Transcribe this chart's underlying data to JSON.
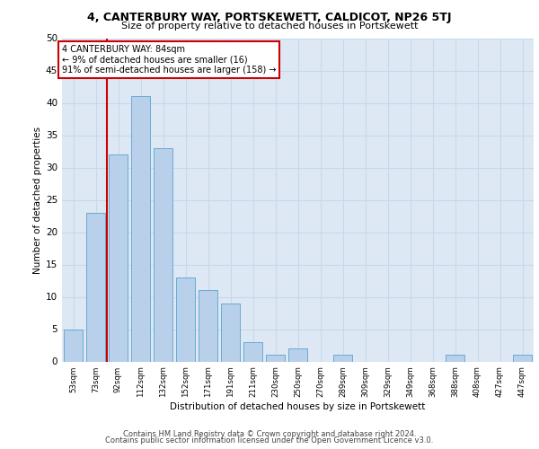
{
  "title1": "4, CANTERBURY WAY, PORTSKEWETT, CALDICOT, NP26 5TJ",
  "title2": "Size of property relative to detached houses in Portskewett",
  "xlabel": "Distribution of detached houses by size in Portskewett",
  "ylabel": "Number of detached properties",
  "bar_labels": [
    "53sqm",
    "73sqm",
    "92sqm",
    "112sqm",
    "132sqm",
    "152sqm",
    "171sqm",
    "191sqm",
    "211sqm",
    "230sqm",
    "250sqm",
    "270sqm",
    "289sqm",
    "309sqm",
    "329sqm",
    "349sqm",
    "368sqm",
    "388sqm",
    "408sqm",
    "427sqm",
    "447sqm"
  ],
  "bar_values": [
    5,
    23,
    32,
    41,
    33,
    13,
    11,
    9,
    3,
    1,
    2,
    0,
    1,
    0,
    0,
    0,
    0,
    1,
    0,
    0,
    1
  ],
  "bar_color": "#b8d0ea",
  "bar_edge_color": "#6aaad4",
  "vline_color": "#cc0000",
  "annotation_title": "4 CANTERBURY WAY: 84sqm",
  "annotation_line1": "← 9% of detached houses are smaller (16)",
  "annotation_line2": "91% of semi-detached houses are larger (158) →",
  "annotation_box_color": "#cc0000",
  "ylim": [
    0,
    50
  ],
  "yticks": [
    0,
    5,
    10,
    15,
    20,
    25,
    30,
    35,
    40,
    45,
    50
  ],
  "grid_color": "#c8d8ea",
  "bg_color": "#dde8f4",
  "footer1": "Contains HM Land Registry data © Crown copyright and database right 2024.",
  "footer2": "Contains public sector information licensed under the Open Government Licence v3.0."
}
